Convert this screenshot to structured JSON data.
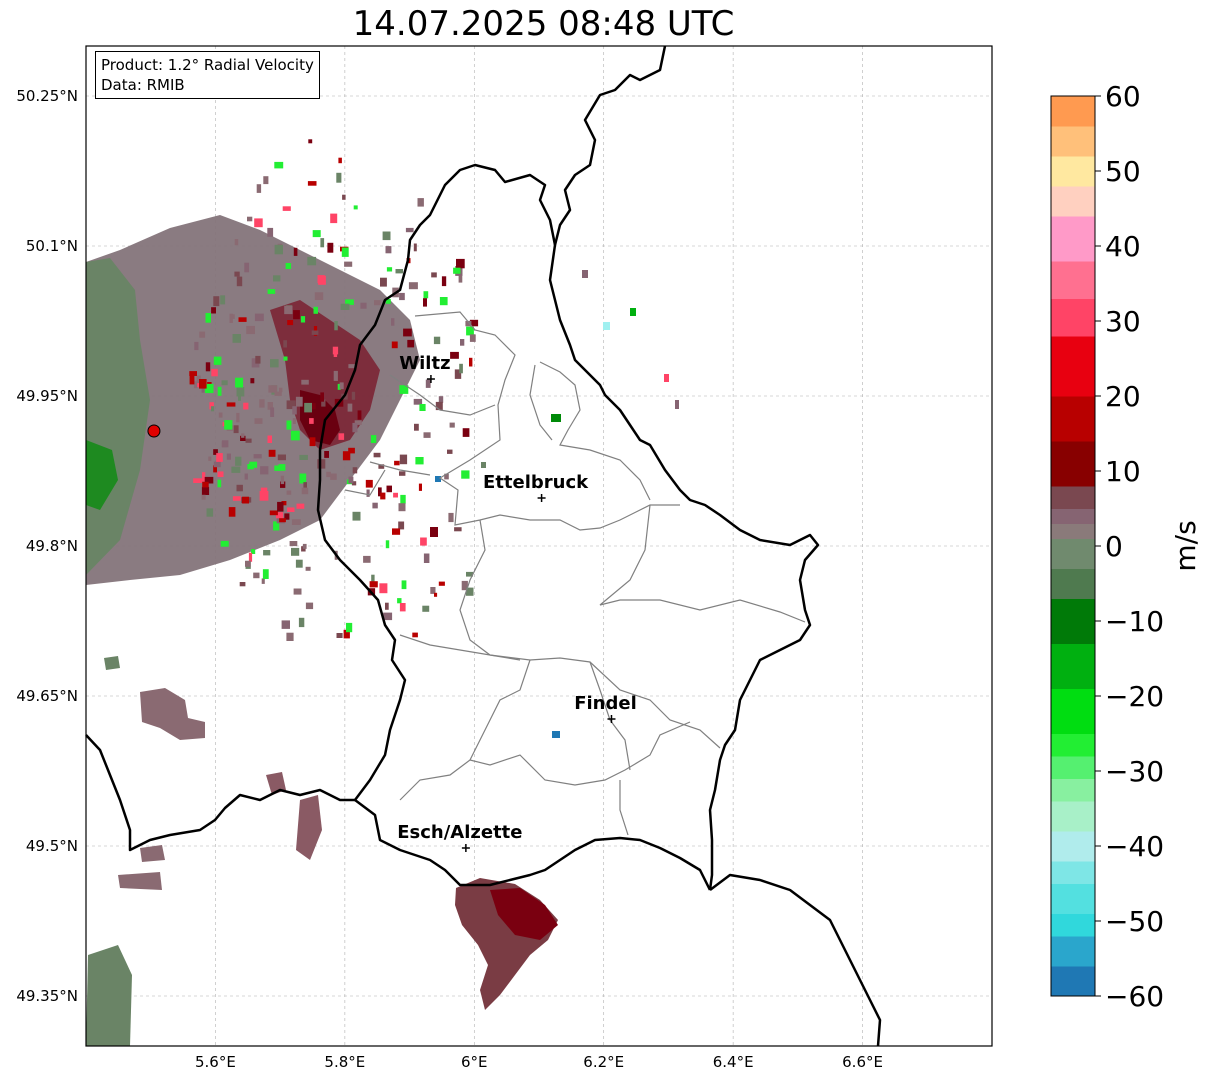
{
  "title": "14.07.2025 08:48 UTC",
  "info": {
    "product_line": "Product: 1.2° Radial Velocity",
    "data_line": "Data: RMIB"
  },
  "map": {
    "lon_range": [
      5.4,
      6.8
    ],
    "lat_range": [
      49.3,
      50.3
    ],
    "lat_ticks": [
      {
        "value": 50.25,
        "label": "50.25°N"
      },
      {
        "value": 50.1,
        "label": "50.1°N"
      },
      {
        "value": 49.95,
        "label": "49.95°N"
      },
      {
        "value": 49.8,
        "label": "49.8°N"
      },
      {
        "value": 49.65,
        "label": "49.65°N"
      },
      {
        "value": 49.5,
        "label": "49.5°N"
      },
      {
        "value": 49.35,
        "label": "49.35°N"
      }
    ],
    "lon_ticks": [
      {
        "value": 5.6,
        "label": "5.6°E"
      },
      {
        "value": 5.8,
        "label": "5.8°E"
      },
      {
        "value": 6.0,
        "label": "6°E"
      },
      {
        "value": 6.2,
        "label": "6.2°E"
      },
      {
        "value": 6.4,
        "label": "6.4°E"
      },
      {
        "value": 6.6,
        "label": "6.6°E"
      }
    ],
    "grid": true,
    "radar_site": {
      "lon": 5.505,
      "lat": 49.915
    },
    "cities": [
      {
        "name": "Wiltz",
        "lon": 5.933,
        "lat": 49.967
      },
      {
        "name": "Ettelbruck",
        "lon": 6.104,
        "lat": 49.848
      },
      {
        "name": "Findel",
        "lon": 6.212,
        "lat": 49.627
      },
      {
        "name": "Esch/Alzette",
        "lon": 5.987,
        "lat": 49.498
      }
    ]
  },
  "colorbar": {
    "min": -60,
    "max": 60,
    "label": "m/s",
    "ticks": [
      {
        "value": 60,
        "label": "60"
      },
      {
        "value": 50,
        "label": "50"
      },
      {
        "value": 40,
        "label": "40"
      },
      {
        "value": 30,
        "label": "30"
      },
      {
        "value": 20,
        "label": "20"
      },
      {
        "value": 10,
        "label": "10"
      },
      {
        "value": 0,
        "label": "0"
      },
      {
        "value": -10,
        "label": "−10"
      },
      {
        "value": -20,
        "label": "−20"
      },
      {
        "value": -30,
        "label": "−30"
      },
      {
        "value": -40,
        "label": "−40"
      },
      {
        "value": -50,
        "label": "−50"
      },
      {
        "value": -60,
        "label": "−60"
      }
    ],
    "color_stops": [
      {
        "from": -60,
        "to": -56,
        "color": "#1f78b4"
      },
      {
        "from": -56,
        "to": -52,
        "color": "#2aa6cc"
      },
      {
        "from": -52,
        "to": -49,
        "color": "#30d8dc"
      },
      {
        "from": -49,
        "to": -45,
        "color": "#53e0e0"
      },
      {
        "from": -45,
        "to": -42,
        "color": "#7ee6e6"
      },
      {
        "from": -42,
        "to": -38,
        "color": "#b0ecec"
      },
      {
        "from": -38,
        "to": -34,
        "color": "#a8f0c8"
      },
      {
        "from": -34,
        "to": -31,
        "color": "#88f0a0"
      },
      {
        "from": -31,
        "to": -28,
        "color": "#55f070"
      },
      {
        "from": -28,
        "to": -25,
        "color": "#22ee33"
      },
      {
        "from": -25,
        "to": -19,
        "color": "#00dd11"
      },
      {
        "from": -19,
        "to": -13,
        "color": "#00b010"
      },
      {
        "from": -13,
        "to": -7,
        "color": "#007a08"
      },
      {
        "from": -7,
        "to": -3,
        "color": "#4f7a4f"
      },
      {
        "from": -3,
        "to": 1,
        "color": "#708a6e"
      },
      {
        "from": 1,
        "to": 3,
        "color": "#8a7a7a"
      },
      {
        "from": 3,
        "to": 5,
        "color": "#866472"
      },
      {
        "from": 5,
        "to": 8,
        "color": "#7a4850"
      },
      {
        "from": 8,
        "to": 14,
        "color": "#880000"
      },
      {
        "from": 14,
        "to": 20,
        "color": "#b80000"
      },
      {
        "from": 20,
        "to": 28,
        "color": "#e80010"
      },
      {
        "from": 28,
        "to": 33,
        "color": "#ff4466"
      },
      {
        "from": 33,
        "to": 38,
        "color": "#ff7090"
      },
      {
        "from": 38,
        "to": 44,
        "color": "#ff9ac8"
      },
      {
        "from": 44,
        "to": 48,
        "color": "#ffd0c0"
      },
      {
        "from": 48,
        "to": 52,
        "color": "#ffe8a0"
      },
      {
        "from": 52,
        "to": 56,
        "color": "#ffc07a"
      },
      {
        "from": 56,
        "to": 60,
        "color": "#ff9a50"
      }
    ]
  },
  "colors": {
    "border": "#000000",
    "canton_lines": "#808080",
    "grid": "#b0b0b0",
    "radar_site": "#e00000",
    "echo_gray_green": "#6a8466",
    "echo_mauve": "#8a6a72",
    "echo_dark_red": "#7a0010",
    "echo_south_mauve": "#7a3c44"
  }
}
